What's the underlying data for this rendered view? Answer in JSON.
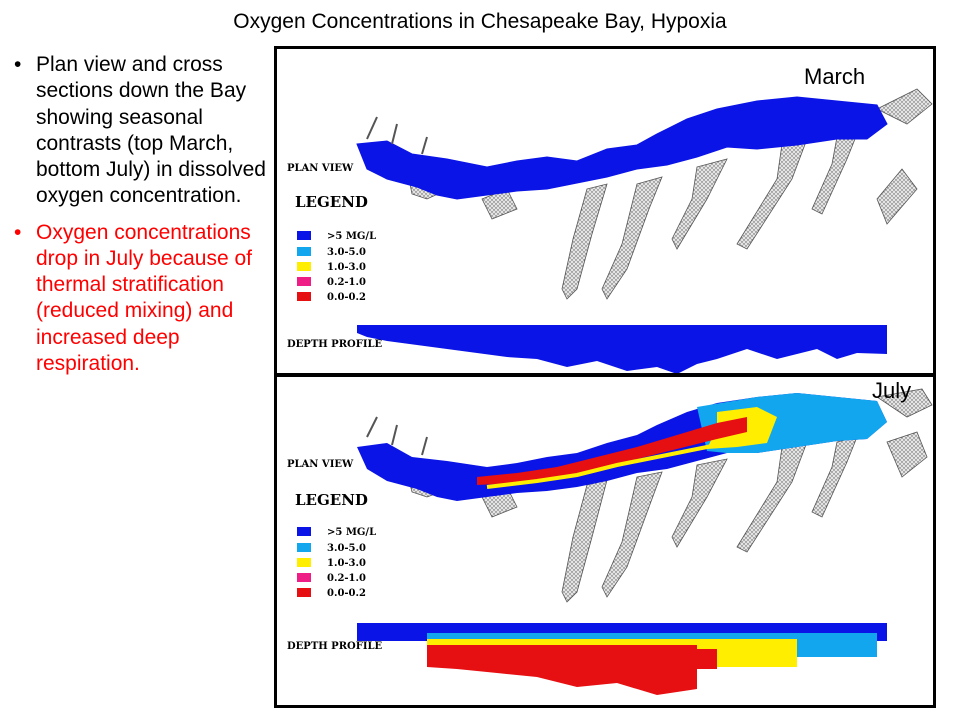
{
  "title": "Oxygen Concentrations in Chesapeake Bay, Hypoxia",
  "bullets": [
    {
      "text": "Plan view and cross sections down the Bay showing seasonal contrasts (top March, bottom July) in dissolved oxygen concentration.",
      "color": "#000000"
    },
    {
      "text": "Oxygen concentrations drop in July because of thermal stratification (reduced mixing) and increased deep respiration.",
      "color": "#ff0000"
    }
  ],
  "panels": {
    "march": {
      "label": "March",
      "plan_view_label": "PLAN VIEW",
      "legend_title": "LEGEND",
      "depth_profile_label": "DEPTH PROFILE"
    },
    "july": {
      "label": "July",
      "plan_view_label": "PLAN VIEW",
      "legend_title": "LEGEND",
      "depth_profile_label": "DEPTH PROFILE"
    }
  },
  "legend": [
    {
      "label": ">5 MG/L",
      "color": "#0b14e6"
    },
    {
      "label": "3.0-5.0",
      "color": "#12a6ee"
    },
    {
      "label": "1.0-3.0",
      "color": "#ffee00"
    },
    {
      "label": "0.2-1.0",
      "color": "#ee1e86"
    },
    {
      "label": "0.0-0.2",
      "color": "#e60f12"
    }
  ],
  "colors": {
    "land": "#d7d7d7",
    "land_outline": "#6f6f6f"
  }
}
